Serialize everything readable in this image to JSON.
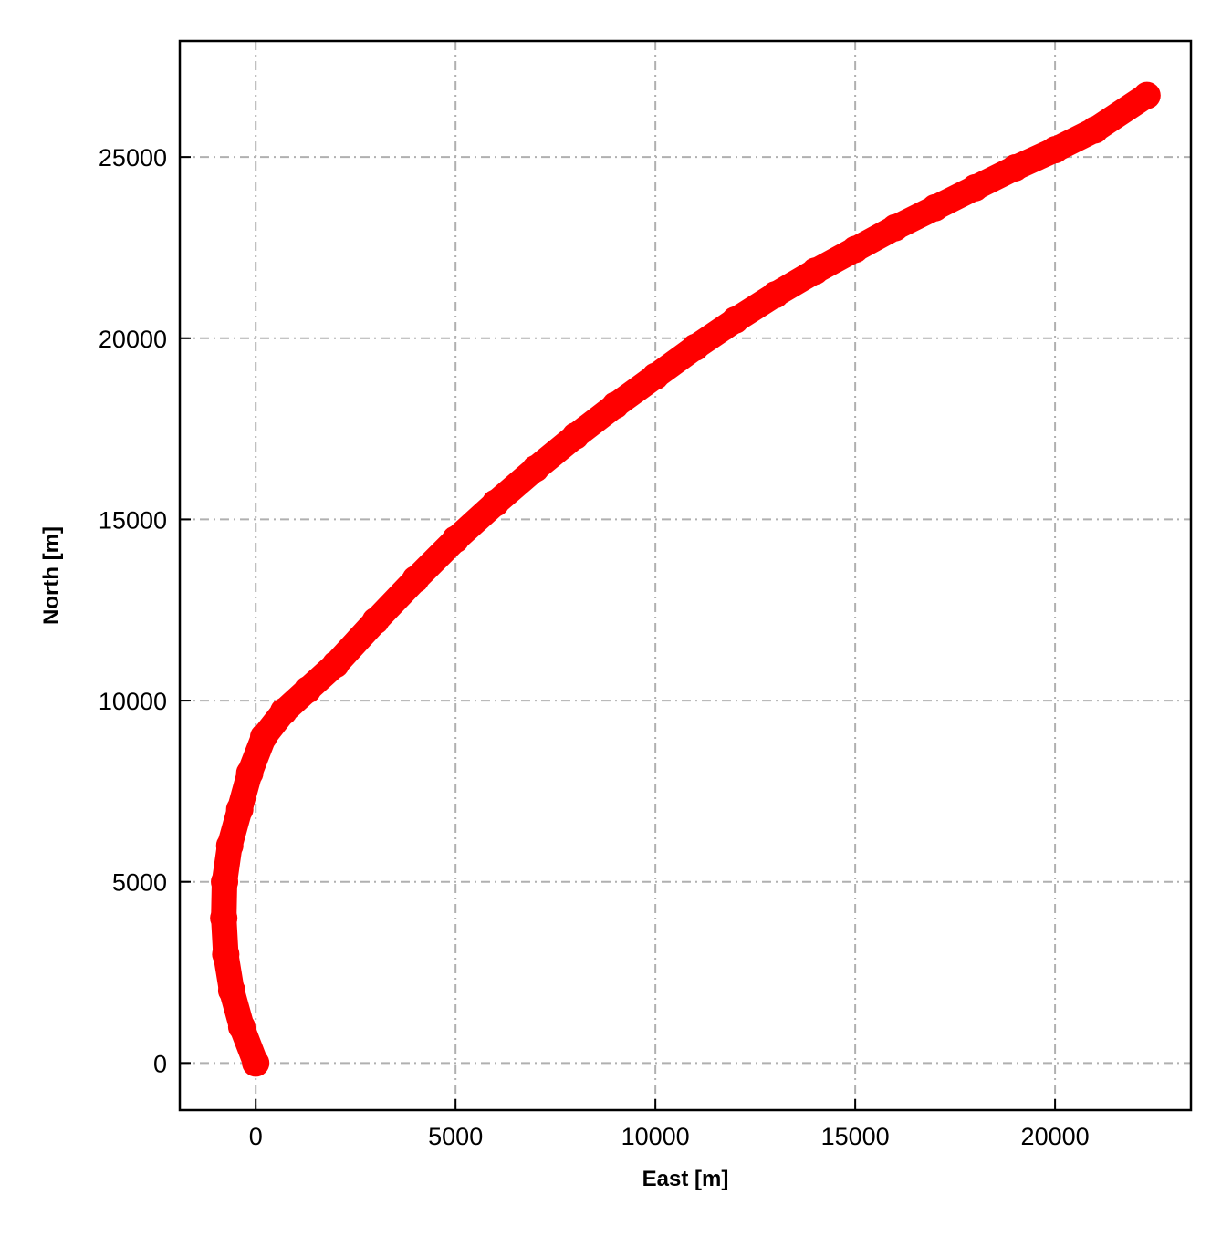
{
  "chart_data": {
    "type": "line",
    "title": "",
    "xlabel": "East [m]",
    "ylabel": "North [m]",
    "xlim": [
      -1900,
      23400
    ],
    "ylim": [
      -1300,
      28200
    ],
    "x_ticks": [
      0,
      5000,
      10000,
      15000,
      20000
    ],
    "y_ticks": [
      0,
      5000,
      10000,
      15000,
      20000,
      25000
    ],
    "x_tick_labels": [
      "0",
      "5000",
      "10000",
      "15000",
      "20000"
    ],
    "y_tick_labels": [
      "0",
      "5000",
      "10000",
      "15000",
      "20000",
      "25000"
    ],
    "grid": true,
    "grid_style": "dash-dot",
    "legend": "none",
    "series": [
      {
        "color": "#ff0000",
        "marker": "circle",
        "x": [
          0,
          -350,
          -600,
          -750,
          -800,
          -780,
          -650,
          -400,
          -150,
          200,
          700,
          1300,
          2000,
          3000,
          4000,
          5000,
          6000,
          7000,
          8000,
          9000,
          10000,
          11000,
          12000,
          13000,
          14000,
          15000,
          16000,
          17000,
          18000,
          19000,
          20000,
          21000,
          22300
        ],
        "y": [
          0,
          1000,
          2000,
          3000,
          4000,
          5000,
          6000,
          7000,
          8000,
          9000,
          9700,
          10300,
          11000,
          12200,
          13350,
          14450,
          15450,
          16400,
          17300,
          18150,
          18950,
          19750,
          20500,
          21200,
          21850,
          22450,
          23050,
          23600,
          24150,
          24700,
          25200,
          25750,
          26700
        ]
      }
    ]
  },
  "colors": {
    "series": "#ff0000",
    "grid": "#b0b0b0",
    "axes": "#000000",
    "background": "#ffffff"
  }
}
